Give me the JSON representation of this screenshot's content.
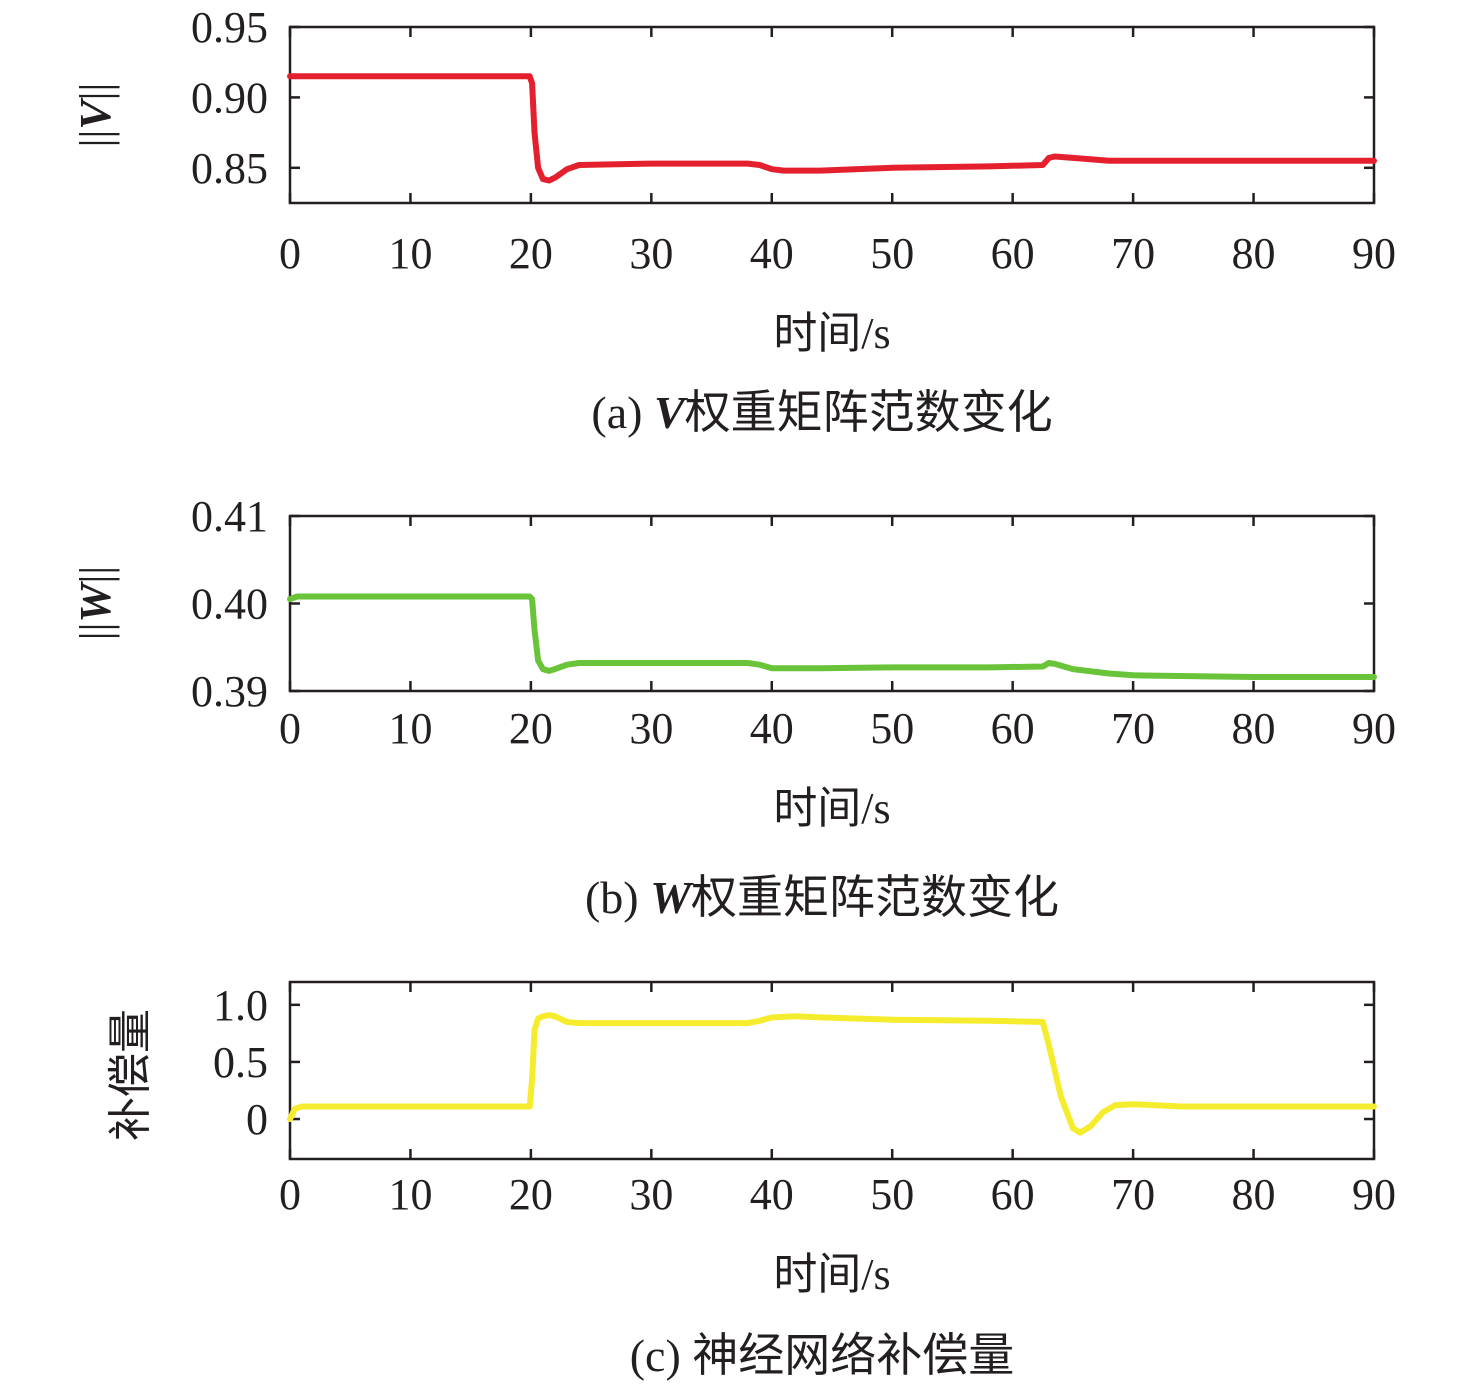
{
  "chart_data": [
    {
      "type": "line",
      "panel": "a",
      "caption_prefix": "(a) ",
      "caption_symbol": "V",
      "caption_text": "权重矩阵范数变化",
      "ylabel_prefix": "||",
      "ylabel_symbol": "V",
      "ylabel_suffix": "||",
      "xlabel": "时间/s",
      "xlim": [
        0,
        90
      ],
      "ylim": [
        0.825,
        0.95
      ],
      "xticks": [
        0,
        10,
        20,
        30,
        40,
        50,
        60,
        70,
        80,
        90
      ],
      "xtick_labels": [
        "0",
        "10",
        "20",
        "30",
        "40",
        "50",
        "60",
        "70",
        "80",
        "90"
      ],
      "yticks": [
        0.85,
        0.9,
        0.95
      ],
      "ytick_labels": [
        "0.85",
        "0.90",
        "0.95"
      ],
      "series": [
        {
          "color": "#e5202e",
          "x": [
            0,
            19.9,
            20.1,
            20.3,
            20.6,
            21.0,
            21.5,
            22.0,
            23.0,
            24.0,
            30,
            38,
            39,
            40,
            41,
            44,
            50,
            58,
            62.5,
            63.0,
            63.5,
            65,
            68,
            70,
            80,
            90
          ],
          "y": [
            0.915,
            0.915,
            0.91,
            0.875,
            0.85,
            0.842,
            0.841,
            0.843,
            0.849,
            0.852,
            0.853,
            0.853,
            0.852,
            0.849,
            0.848,
            0.848,
            0.85,
            0.851,
            0.852,
            0.857,
            0.858,
            0.857,
            0.855,
            0.855,
            0.855,
            0.855
          ]
        }
      ]
    },
    {
      "type": "line",
      "panel": "b",
      "caption_prefix": "(b) ",
      "caption_symbol": "W",
      "caption_text": "权重矩阵范数变化",
      "ylabel_prefix": "||",
      "ylabel_symbol": "W",
      "ylabel_suffix": "||",
      "xlabel": "时间/s",
      "xlim": [
        0,
        90
      ],
      "ylim": [
        0.39,
        0.41
      ],
      "xticks": [
        0,
        10,
        20,
        30,
        40,
        50,
        60,
        70,
        80,
        90
      ],
      "xtick_labels": [
        "0",
        "10",
        "20",
        "30",
        "40",
        "50",
        "60",
        "70",
        "80",
        "90"
      ],
      "yticks": [
        0.39,
        0.4,
        0.41
      ],
      "ytick_labels": [
        "0.39",
        "0.40",
        "0.41"
      ],
      "series": [
        {
          "color": "#6ac43a",
          "x": [
            0,
            0.6,
            19.9,
            20.1,
            20.3,
            20.6,
            21.0,
            21.5,
            22.0,
            23.0,
            24.0,
            30,
            38,
            39,
            40,
            41,
            44,
            50,
            58,
            62.5,
            63.0,
            63.5,
            65,
            68,
            70,
            80,
            90
          ],
          "y": [
            0.4005,
            0.4008,
            0.4008,
            0.4005,
            0.397,
            0.3935,
            0.3925,
            0.3923,
            0.3925,
            0.393,
            0.3932,
            0.3932,
            0.3932,
            0.393,
            0.3926,
            0.3926,
            0.3926,
            0.3927,
            0.3927,
            0.3928,
            0.3932,
            0.3931,
            0.3925,
            0.392,
            0.3918,
            0.3916,
            0.3916
          ]
        }
      ]
    },
    {
      "type": "line",
      "panel": "c",
      "caption_prefix": "(c) ",
      "caption_symbol": "",
      "caption_text": "神经网络补偿量",
      "ylabel_prefix": "",
      "ylabel_symbol": "补偿量",
      "ylabel_suffix": "",
      "xlabel": "时间/s",
      "xlim": [
        0,
        90
      ],
      "ylim": [
        -0.35,
        1.2
      ],
      "xticks": [
        0,
        10,
        20,
        30,
        40,
        50,
        60,
        70,
        80,
        90
      ],
      "xtick_labels": [
        "0",
        "10",
        "20",
        "30",
        "40",
        "50",
        "60",
        "70",
        "80",
        "90"
      ],
      "yticks": [
        0,
        0.5,
        1.0
      ],
      "ytick_labels": [
        "0",
        "0.5",
        "1.0"
      ],
      "series": [
        {
          "color": "#f6ec2e",
          "x": [
            0,
            0.4,
            1.0,
            19.9,
            20.1,
            20.3,
            20.6,
            21.0,
            21.5,
            22.0,
            23.0,
            24.0,
            30,
            38,
            39,
            40,
            42,
            44,
            50,
            58,
            62.5,
            63.0,
            64.0,
            65.0,
            65.6,
            66.5,
            67.5,
            68.5,
            70,
            74,
            80,
            90
          ],
          "y": [
            0.0,
            0.09,
            0.11,
            0.11,
            0.35,
            0.78,
            0.88,
            0.9,
            0.91,
            0.9,
            0.85,
            0.84,
            0.84,
            0.84,
            0.86,
            0.89,
            0.9,
            0.89,
            0.87,
            0.86,
            0.85,
            0.65,
            0.2,
            -0.08,
            -0.12,
            -0.06,
            0.06,
            0.12,
            0.13,
            0.11,
            0.11,
            0.11
          ]
        }
      ]
    }
  ]
}
